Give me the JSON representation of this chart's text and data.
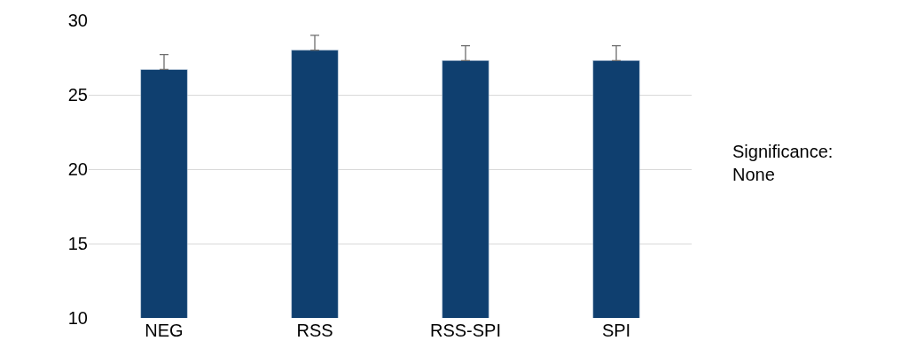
{
  "chart_data": {
    "type": "bar",
    "categories": [
      "NEG",
      "RSS",
      "RSS-SPI",
      "SPI"
    ],
    "values": [
      26.7,
      28.0,
      27.3,
      27.3
    ],
    "errors": [
      [
        26.7,
        27.7
      ],
      [
        28.0,
        29.0
      ],
      [
        27.3,
        28.3
      ],
      [
        27.3,
        28.3
      ]
    ],
    "color": "#0f3f6f",
    "ylim": [
      10,
      30
    ],
    "yticks": [
      10,
      15,
      20,
      25,
      30
    ],
    "grid": "y",
    "annotations": [
      "Significance:\nNone"
    ]
  }
}
